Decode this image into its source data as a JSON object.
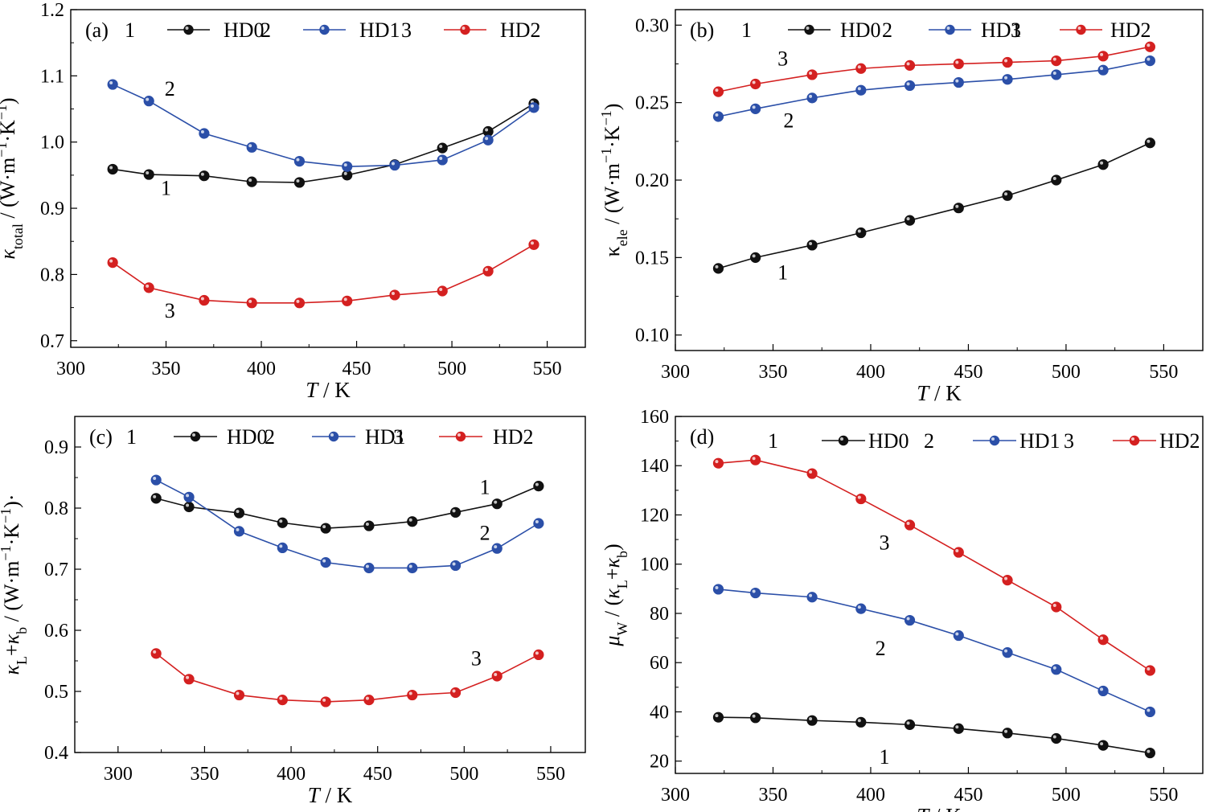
{
  "panels": [
    {
      "panel_label": "(a)",
      "ylabel_parts": [
        {
          "t": "κ",
          "i": true
        },
        {
          "t": "total",
          "sub": true
        },
        {
          "t": " / (W·m"
        },
        {
          "t": "−1",
          "sup": true
        },
        {
          "t": "·K"
        },
        {
          "t": "−1",
          "sup": true
        },
        {
          "t": ")"
        }
      ],
      "xlabel_parts": [
        {
          "t": "T",
          "i": true
        },
        {
          "t": " / K"
        }
      ]
    },
    {
      "panel_label": "(b)",
      "ylabel_parts": [
        {
          "t": "κ"
        },
        {
          "t": "ele",
          "sub": true
        },
        {
          "t": " / (W·m"
        },
        {
          "t": "−1",
          "sup": true
        },
        {
          "t": "·K"
        },
        {
          "t": "−1",
          "sup": true
        },
        {
          "t": ")"
        }
      ],
      "xlabel_parts": [
        {
          "t": "T",
          "i": true
        },
        {
          "t": " / K"
        }
      ]
    },
    {
      "panel_label": "(c)",
      "ylabel_parts": [
        {
          "t": "κ",
          "i": true
        },
        {
          "t": "L",
          "sub": true
        },
        {
          "t": "+"
        },
        {
          "t": "κ",
          "i": true
        },
        {
          "t": "b",
          "sub": true
        },
        {
          "t": " / (W·m"
        },
        {
          "t": "−1",
          "sup": true
        },
        {
          "t": "·K"
        },
        {
          "t": "−1",
          "sup": true
        },
        {
          "t": ")·"
        }
      ],
      "xlabel_parts": [
        {
          "t": "T",
          "i": true
        },
        {
          "t": " / K"
        }
      ]
    },
    {
      "panel_label": "(d)",
      "ylabel_parts": [
        {
          "t": "μ",
          "i": true
        },
        {
          "t": "W",
          "sub": true
        },
        {
          "t": " / ("
        },
        {
          "t": "κ",
          "i": true
        },
        {
          "t": "L",
          "sub": true
        },
        {
          "t": "+"
        },
        {
          "t": "κ",
          "i": true
        },
        {
          "t": "b",
          "sub": true
        },
        {
          "t": ")"
        }
      ],
      "xlabel_parts": [
        {
          "t": "T",
          "i": true
        },
        {
          "t": " / K"
        }
      ]
    }
  ],
  "chart_data": [
    {
      "type": "line",
      "title": "",
      "xlabel": "T / K",
      "ylabel": "κtotal / (W·m−1·K−1)",
      "xlim": [
        300,
        570
      ],
      "ylim": [
        0.69,
        1.2
      ],
      "xticks": [
        300,
        350,
        400,
        450,
        500,
        550
      ],
      "yticks": [
        0.7,
        0.8,
        0.9,
        1.0,
        1.1,
        1.2
      ],
      "ytick_labels": [
        "0.7",
        "0.8",
        "0.9",
        "1.0",
        "1.1",
        "1.2"
      ],
      "legend": "top",
      "series": [
        {
          "name": "HD0",
          "number": "1",
          "color": "#111111",
          "x": [
            322,
            341,
            370,
            395,
            420,
            445,
            470,
            495,
            519,
            543
          ],
          "values": [
            0.959,
            0.951,
            0.949,
            0.94,
            0.939,
            0.95,
            0.966,
            0.991,
            1.016,
            1.058
          ]
        },
        {
          "name": "HD1",
          "number": "2",
          "color": "#2b4fa8",
          "x": [
            322,
            341,
            370,
            395,
            420,
            445,
            470,
            495,
            519,
            543
          ],
          "values": [
            1.087,
            1.062,
            1.013,
            0.992,
            0.971,
            0.963,
            0.965,
            0.973,
            1.003,
            1.052
          ]
        },
        {
          "name": "HD2",
          "number": "3",
          "color": "#d42020",
          "x": [
            322,
            341,
            370,
            395,
            420,
            445,
            470,
            495,
            519,
            543
          ],
          "values": [
            0.818,
            0.78,
            0.761,
            0.757,
            0.757,
            0.76,
            0.769,
            0.775,
            0.805,
            0.845
          ]
        }
      ],
      "annotations": [
        {
          "text": "2",
          "x": 352,
          "y": 1.07
        },
        {
          "text": "1",
          "x": 350,
          "y": 0.92
        },
        {
          "text": "3",
          "x": 352,
          "y": 0.735
        }
      ]
    },
    {
      "type": "line",
      "title": "",
      "xlabel": "T / K",
      "ylabel": "κele / (W·m−1·K−1)",
      "xlim": [
        300,
        570
      ],
      "ylim": [
        0.09,
        0.31
      ],
      "xticks": [
        300,
        350,
        400,
        450,
        500,
        550
      ],
      "yticks": [
        0.1,
        0.15,
        0.2,
        0.25,
        0.3
      ],
      "ytick_labels": [
        "0.10",
        "0.15",
        "0.20",
        "0.25",
        "0.30"
      ],
      "legend": "top",
      "series": [
        {
          "name": "HD0",
          "number": "1",
          "color": "#111111",
          "x": [
            322,
            341,
            370,
            395,
            420,
            445,
            470,
            495,
            519,
            543
          ],
          "values": [
            0.143,
            0.15,
            0.158,
            0.166,
            0.174,
            0.182,
            0.19,
            0.2,
            0.21,
            0.224
          ]
        },
        {
          "name": "HD1",
          "number": "2",
          "color": "#2b4fa8",
          "x": [
            322,
            341,
            370,
            395,
            420,
            445,
            470,
            495,
            519,
            543
          ],
          "values": [
            0.241,
            0.246,
            0.253,
            0.258,
            0.261,
            0.263,
            0.265,
            0.268,
            0.271,
            0.277
          ]
        },
        {
          "name": "HD2",
          "number": "3",
          "color": "#d42020",
          "x": [
            322,
            341,
            370,
            395,
            420,
            445,
            470,
            495,
            519,
            543
          ],
          "values": [
            0.257,
            0.262,
            0.268,
            0.272,
            0.274,
            0.275,
            0.276,
            0.277,
            0.28,
            0.286
          ]
        }
      ],
      "annotations": [
        {
          "text": "3",
          "x": 355,
          "y": 0.274
        },
        {
          "text": "2",
          "x": 358,
          "y": 0.234
        },
        {
          "text": "1",
          "x": 355,
          "y": 0.136
        }
      ]
    },
    {
      "type": "line",
      "title": "",
      "xlabel": "T / K",
      "ylabel": "κL+κb / (W·m−1·K−1)·",
      "xlim": [
        275,
        570
      ],
      "ylim": [
        0.4,
        0.95
      ],
      "xticks": [
        300,
        350,
        400,
        450,
        500,
        550
      ],
      "yticks": [
        0.4,
        0.5,
        0.6,
        0.7,
        0.8,
        0.9
      ],
      "ytick_labels": [
        "0.4",
        "0.5",
        "0.6",
        "0.7",
        "0.8",
        "0.9"
      ],
      "legend": "top",
      "series": [
        {
          "name": "HD0",
          "number": "1",
          "color": "#111111",
          "x": [
            322,
            341,
            370,
            395,
            420,
            445,
            470,
            495,
            519,
            543
          ],
          "values": [
            0.816,
            0.802,
            0.792,
            0.776,
            0.767,
            0.771,
            0.778,
            0.793,
            0.807,
            0.836
          ]
        },
        {
          "name": "HD1",
          "number": "2",
          "color": "#2b4fa8",
          "x": [
            322,
            341,
            370,
            395,
            420,
            445,
            470,
            495,
            519,
            543
          ],
          "values": [
            0.846,
            0.818,
            0.762,
            0.735,
            0.711,
            0.702,
            0.702,
            0.706,
            0.734,
            0.775
          ]
        },
        {
          "name": "HD2",
          "number": "3",
          "color": "#d42020",
          "x": [
            322,
            341,
            370,
            395,
            420,
            445,
            470,
            495,
            519,
            543
          ],
          "values": [
            0.562,
            0.52,
            0.494,
            0.486,
            0.483,
            0.486,
            0.494,
            0.498,
            0.525,
            0.56
          ]
        }
      ],
      "annotations": [
        {
          "text": "1",
          "x": 512,
          "y": 0.823
        },
        {
          "text": "2",
          "x": 512,
          "y": 0.748
        },
        {
          "text": "3",
          "x": 507,
          "y": 0.543
        }
      ]
    },
    {
      "type": "line",
      "title": "",
      "xlabel": "T / K",
      "ylabel": "μW / (κL+κb)",
      "xlim": [
        300,
        570
      ],
      "ylim": [
        15,
        160
      ],
      "xticks": [
        300,
        350,
        400,
        450,
        500,
        550
      ],
      "yticks": [
        20,
        40,
        60,
        80,
        100,
        120,
        140,
        160
      ],
      "ytick_labels": [
        "20",
        "40",
        "60",
        "80",
        "100",
        "120",
        "140",
        "160"
      ],
      "legend": "top",
      "series": [
        {
          "name": "HD0",
          "number": "1",
          "color": "#111111",
          "x": [
            322,
            341,
            370,
            395,
            420,
            445,
            470,
            495,
            519,
            543
          ],
          "values": [
            37.8,
            37.6,
            36.5,
            35.8,
            34.8,
            33.2,
            31.4,
            29.2,
            26.4,
            23.3
          ]
        },
        {
          "name": "HD1",
          "number": "2",
          "color": "#2b4fa8",
          "x": [
            322,
            341,
            370,
            395,
            420,
            445,
            470,
            495,
            519,
            543
          ],
          "values": [
            89.8,
            88.3,
            86.6,
            81.9,
            77.2,
            71.0,
            64.1,
            57.2,
            48.5,
            40.0
          ]
        },
        {
          "name": "HD2",
          "number": "3",
          "color": "#d42020",
          "x": [
            322,
            341,
            370,
            395,
            420,
            445,
            470,
            495,
            519,
            543
          ],
          "values": [
            141.0,
            142.3,
            136.8,
            126.5,
            115.9,
            104.8,
            93.5,
            82.6,
            69.3,
            56.8
          ]
        }
      ],
      "annotations": [
        {
          "text": "3",
          "x": 407,
          "y": 106
        },
        {
          "text": "2",
          "x": 405,
          "y": 63
        },
        {
          "text": "1",
          "x": 407,
          "y": 19
        }
      ]
    }
  ]
}
